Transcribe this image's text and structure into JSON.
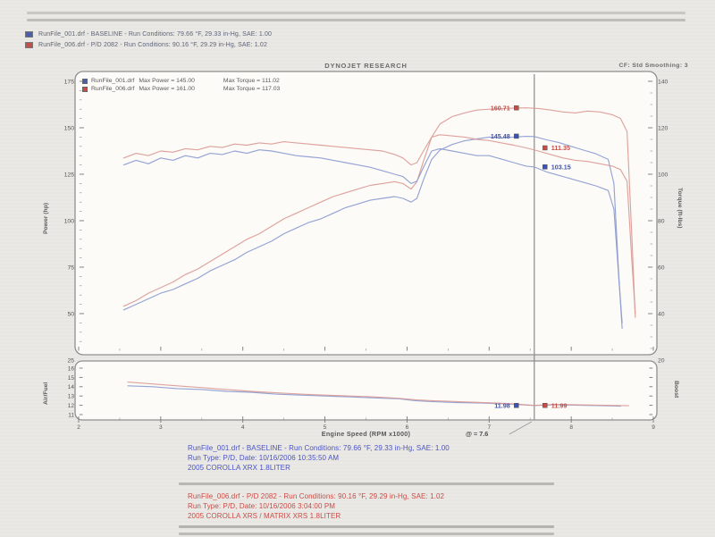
{
  "header_legend": {
    "items": [
      {
        "color": "#4a5fae",
        "label": "RunFile_001.drf - BASELINE  -  Run Conditions: 79.66 °F, 29.33 in-Hg, SAE: 1.00"
      },
      {
        "color": "#c0504a",
        "label": "RunFile_006.drf - P/D 2082  -  Run Conditions: 90.16 °F, 29.29 in-Hg, SAE: 1.02"
      }
    ]
  },
  "chart_header": {
    "title": "DYNOJET RESEARCH",
    "right": "CF: Std   Smoothing: 3"
  },
  "chart_data": {
    "type": "line",
    "x_axis": {
      "label": "Engine Speed (RPM x1000)",
      "min": 2,
      "max": 9,
      "ticks": [
        2,
        3,
        4,
        5,
        6,
        7,
        8,
        9
      ]
    },
    "power_axis": {
      "label": "Power (hp)",
      "ticks": [
        175,
        150,
        125,
        100,
        75,
        50,
        25
      ]
    },
    "torque_axis": {
      "label": "Torque (ft-lbs)",
      "ticks": [
        140,
        120,
        100,
        80,
        60,
        40,
        20
      ]
    },
    "afr_axis": {
      "label": "Air/Fuel",
      "ticks": [
        16,
        15,
        14,
        13,
        12,
        11
      ]
    },
    "afr_right_label": "Boost",
    "cursor": {
      "rpm": 7.55,
      "label": "@ = 7.6"
    },
    "in_chart_legend": [
      {
        "color": "#4a5fae",
        "file": "RunFile_001.drf",
        "max_power": "Max Power = 145.00",
        "max_torque": "Max Torque = 111.02"
      },
      {
        "color": "#c0504a",
        "file": "RunFile_006.drf",
        "max_power": "Max Power = 161.00",
        "max_torque": "Max Torque = 117.03"
      }
    ],
    "series": [
      {
        "name": "baseline-power",
        "axis": "power",
        "color": "#8b9bd0",
        "points": [
          [
            2.55,
            52
          ],
          [
            2.7,
            55
          ],
          [
            2.85,
            58
          ],
          [
            3.0,
            61
          ],
          [
            3.15,
            63
          ],
          [
            3.3,
            66
          ],
          [
            3.45,
            69
          ],
          [
            3.6,
            73
          ],
          [
            3.75,
            76
          ],
          [
            3.9,
            79
          ],
          [
            4.05,
            83
          ],
          [
            4.2,
            86
          ],
          [
            4.35,
            89
          ],
          [
            4.5,
            93
          ],
          [
            4.65,
            96
          ],
          [
            4.8,
            99
          ],
          [
            4.95,
            101
          ],
          [
            5.1,
            104
          ],
          [
            5.25,
            107
          ],
          [
            5.4,
            109
          ],
          [
            5.55,
            111
          ],
          [
            5.7,
            112
          ],
          [
            5.85,
            113
          ],
          [
            5.95,
            112
          ],
          [
            6.05,
            110
          ],
          [
            6.12,
            112
          ],
          [
            6.2,
            122
          ],
          [
            6.3,
            133
          ],
          [
            6.4,
            138
          ],
          [
            6.55,
            141
          ],
          [
            6.7,
            143
          ],
          [
            6.85,
            144
          ],
          [
            7.0,
            145
          ],
          [
            7.15,
            144.5
          ],
          [
            7.3,
            145
          ],
          [
            7.45,
            145.4
          ],
          [
            7.55,
            145.3
          ],
          [
            7.7,
            143.5
          ],
          [
            7.85,
            142
          ],
          [
            8.0,
            140
          ],
          [
            8.15,
            138
          ],
          [
            8.3,
            136
          ],
          [
            8.45,
            133
          ],
          [
            8.52,
            120
          ],
          [
            8.58,
            70
          ],
          [
            8.62,
            42
          ]
        ]
      },
      {
        "name": "pd-power",
        "axis": "power",
        "color": "#db9a95",
        "points": [
          [
            2.55,
            54
          ],
          [
            2.7,
            57
          ],
          [
            2.85,
            61
          ],
          [
            3.0,
            64
          ],
          [
            3.15,
            67
          ],
          [
            3.3,
            71
          ],
          [
            3.45,
            74
          ],
          [
            3.6,
            78
          ],
          [
            3.75,
            82
          ],
          [
            3.9,
            86
          ],
          [
            4.05,
            90
          ],
          [
            4.2,
            93
          ],
          [
            4.35,
            97
          ],
          [
            4.5,
            101
          ],
          [
            4.65,
            104
          ],
          [
            4.8,
            107
          ],
          [
            4.95,
            110
          ],
          [
            5.1,
            113
          ],
          [
            5.25,
            115
          ],
          [
            5.4,
            117
          ],
          [
            5.55,
            119
          ],
          [
            5.7,
            120
          ],
          [
            5.85,
            121
          ],
          [
            5.95,
            120
          ],
          [
            6.05,
            117
          ],
          [
            6.12,
            121
          ],
          [
            6.2,
            132
          ],
          [
            6.3,
            145
          ],
          [
            6.4,
            152
          ],
          [
            6.55,
            156
          ],
          [
            6.7,
            158
          ],
          [
            6.85,
            159.5
          ],
          [
            7.0,
            160
          ],
          [
            7.15,
            160.3
          ],
          [
            7.3,
            160.6
          ],
          [
            7.45,
            160.7
          ],
          [
            7.6,
            160.4
          ],
          [
            7.75,
            159.5
          ],
          [
            7.9,
            158.5
          ],
          [
            8.05,
            158
          ],
          [
            8.2,
            159
          ],
          [
            8.35,
            158.5
          ],
          [
            8.5,
            157
          ],
          [
            8.6,
            155
          ],
          [
            8.68,
            148
          ],
          [
            8.74,
            90
          ],
          [
            8.78,
            48
          ]
        ]
      },
      {
        "name": "baseline-torque",
        "axis": "torque",
        "color": "#8b9bd0",
        "points": [
          [
            2.55,
            104
          ],
          [
            2.7,
            106
          ],
          [
            2.85,
            104.5
          ],
          [
            3.0,
            107
          ],
          [
            3.15,
            106
          ],
          [
            3.3,
            108
          ],
          [
            3.45,
            107
          ],
          [
            3.6,
            109
          ],
          [
            3.75,
            108.5
          ],
          [
            3.9,
            110
          ],
          [
            4.05,
            109
          ],
          [
            4.2,
            110.5
          ],
          [
            4.35,
            110
          ],
          [
            4.5,
            109
          ],
          [
            4.65,
            108
          ],
          [
            4.8,
            107.5
          ],
          [
            4.95,
            107
          ],
          [
            5.1,
            106
          ],
          [
            5.25,
            105
          ],
          [
            5.4,
            104
          ],
          [
            5.55,
            103
          ],
          [
            5.7,
            101.5
          ],
          [
            5.85,
            100
          ],
          [
            5.95,
            99
          ],
          [
            6.05,
            96
          ],
          [
            6.12,
            97
          ],
          [
            6.2,
            103
          ],
          [
            6.3,
            110
          ],
          [
            6.4,
            111
          ],
          [
            6.55,
            110
          ],
          [
            6.7,
            109
          ],
          [
            6.85,
            108
          ],
          [
            7.0,
            108
          ],
          [
            7.15,
            106.5
          ],
          [
            7.3,
            105
          ],
          [
            7.45,
            103.5
          ],
          [
            7.55,
            103.1
          ],
          [
            7.7,
            101
          ],
          [
            7.85,
            99.5
          ],
          [
            8.0,
            98
          ],
          [
            8.15,
            96.5
          ],
          [
            8.3,
            95
          ],
          [
            8.45,
            93
          ],
          [
            8.52,
            85
          ],
          [
            8.58,
            55
          ],
          [
            8.62,
            36
          ]
        ]
      },
      {
        "name": "pd-torque",
        "axis": "torque",
        "color": "#db9a95",
        "points": [
          [
            2.55,
            107
          ],
          [
            2.7,
            109
          ],
          [
            2.85,
            108
          ],
          [
            3.0,
            110
          ],
          [
            3.15,
            109.5
          ],
          [
            3.3,
            111
          ],
          [
            3.45,
            110.5
          ],
          [
            3.6,
            112
          ],
          [
            3.75,
            111.5
          ],
          [
            3.9,
            113
          ],
          [
            4.05,
            112.5
          ],
          [
            4.2,
            113.5
          ],
          [
            4.35,
            113
          ],
          [
            4.5,
            114
          ],
          [
            4.65,
            113.5
          ],
          [
            4.8,
            113
          ],
          [
            4.95,
            112.5
          ],
          [
            5.1,
            112
          ],
          [
            5.25,
            111.5
          ],
          [
            5.4,
            111
          ],
          [
            5.55,
            110.5
          ],
          [
            5.7,
            110
          ],
          [
            5.85,
            108.5
          ],
          [
            5.95,
            107
          ],
          [
            6.05,
            104
          ],
          [
            6.12,
            105
          ],
          [
            6.2,
            110
          ],
          [
            6.3,
            116
          ],
          [
            6.4,
            117
          ],
          [
            6.55,
            116.5
          ],
          [
            6.7,
            116
          ],
          [
            6.85,
            115
          ],
          [
            7.0,
            114.5
          ],
          [
            7.15,
            113.5
          ],
          [
            7.3,
            112.5
          ],
          [
            7.45,
            111.35
          ],
          [
            7.6,
            110
          ],
          [
            7.75,
            108.5
          ],
          [
            7.9,
            107
          ],
          [
            8.05,
            106
          ],
          [
            8.2,
            105.5
          ],
          [
            8.35,
            104.5
          ],
          [
            8.5,
            103.5
          ],
          [
            8.6,
            102
          ],
          [
            8.68,
            97
          ],
          [
            8.74,
            62
          ],
          [
            8.78,
            40
          ]
        ]
      },
      {
        "name": "baseline-afr",
        "axis": "afr",
        "color": "#8b9bd0",
        "points": [
          [
            2.6,
            14.1
          ],
          [
            2.9,
            14.0
          ],
          [
            3.2,
            13.8
          ],
          [
            3.5,
            13.7
          ],
          [
            3.8,
            13.5
          ],
          [
            4.1,
            13.4
          ],
          [
            4.4,
            13.2
          ],
          [
            4.7,
            13.1
          ],
          [
            5.0,
            13.0
          ],
          [
            5.3,
            12.9
          ],
          [
            5.6,
            12.8
          ],
          [
            5.9,
            12.7
          ],
          [
            6.1,
            12.5
          ],
          [
            6.3,
            12.4
          ],
          [
            6.6,
            12.3
          ],
          [
            6.9,
            12.25
          ],
          [
            7.2,
            12.15
          ],
          [
            7.55,
            11.98
          ],
          [
            7.8,
            12.05
          ],
          [
            8.1,
            12.0
          ],
          [
            8.4,
            11.95
          ],
          [
            8.6,
            11.9
          ]
        ]
      },
      {
        "name": "pd-afr",
        "axis": "afr",
        "color": "#db9a95",
        "points": [
          [
            2.6,
            14.5
          ],
          [
            2.9,
            14.3
          ],
          [
            3.2,
            14.1
          ],
          [
            3.5,
            13.9
          ],
          [
            3.8,
            13.7
          ],
          [
            4.1,
            13.5
          ],
          [
            4.4,
            13.35
          ],
          [
            4.7,
            13.2
          ],
          [
            5.0,
            13.1
          ],
          [
            5.3,
            13.0
          ],
          [
            5.6,
            12.9
          ],
          [
            5.9,
            12.75
          ],
          [
            6.1,
            12.6
          ],
          [
            6.3,
            12.5
          ],
          [
            6.6,
            12.4
          ],
          [
            6.9,
            12.3
          ],
          [
            7.2,
            12.2
          ],
          [
            7.55,
            11.99
          ],
          [
            7.8,
            12.1
          ],
          [
            8.1,
            12.05
          ],
          [
            8.4,
            12.0
          ],
          [
            8.7,
            11.95
          ]
        ]
      }
    ],
    "callouts": [
      {
        "text": "160.71",
        "value": 160.71,
        "axis": "power",
        "color": "#c84b44",
        "side": "left"
      },
      {
        "text": "145.48",
        "value": 145.48,
        "axis": "power",
        "color": "#3d50b5",
        "side": "left"
      },
      {
        "text": "111.35",
        "value": 111.35,
        "axis": "torque",
        "color": "#c84b44",
        "side": "right"
      },
      {
        "text": "103.15",
        "value": 103.15,
        "axis": "torque",
        "color": "#3d50b5",
        "side": "right"
      },
      {
        "text": "11.98",
        "value": 11.98,
        "axis": "afr",
        "color": "#3d50b5",
        "side": "left"
      },
      {
        "text": "11.99",
        "value": 11.99,
        "axis": "afr",
        "color": "#c84b44",
        "side": "right"
      }
    ]
  },
  "footer": {
    "blue": {
      "line1": "RunFile_001.drf - BASELINE  -  Run Conditions: 79.66 °F, 29.33 in-Hg, SAE: 1.00",
      "line2": "Run Type: P/D, Date: 10/16/2006 10:35:50 AM",
      "line3": "2005 COROLLA XRX 1.8LITER"
    },
    "red": {
      "line1": "RunFile_006.drf - P/D 2082  -  Run Conditions: 90.16 °F, 29.29 in-Hg, SAE: 1.02",
      "line2": "Run Type: P/D, Date: 10/16/2006 3:04:00 PM",
      "line3": "2005 COROLLA XRS / MATRIX XRS 1.8LITER"
    }
  }
}
